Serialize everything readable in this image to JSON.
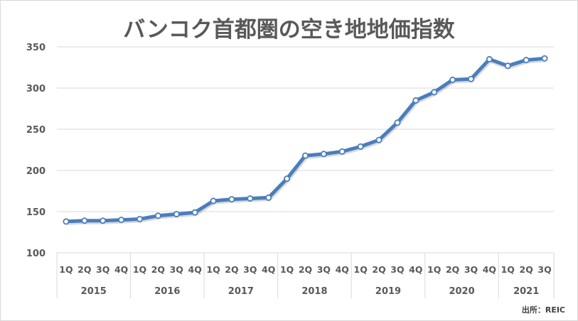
{
  "chart_data": {
    "type": "line",
    "title": "バンコク首都圏の空き地地価指数",
    "xlabel": "",
    "ylabel": "",
    "ylim": [
      100,
      350
    ],
    "yticks": [
      100,
      150,
      200,
      250,
      300,
      350
    ],
    "grid": true,
    "legend": null,
    "x": [
      "2015 1Q",
      "2015 2Q",
      "2015 3Q",
      "2015 4Q",
      "2016 1Q",
      "2016 2Q",
      "2016 3Q",
      "2016 4Q",
      "2017 1Q",
      "2017 2Q",
      "2017 3Q",
      "2017 4Q",
      "2018 1Q",
      "2018 2Q",
      "2018 3Q",
      "2018 4Q",
      "2019 1Q",
      "2019 2Q",
      "2019 3Q",
      "2019 4Q",
      "2020 1Q",
      "2020 2Q",
      "2020 3Q",
      "2020 4Q",
      "2021 1Q",
      "2021 2Q",
      "2021 3Q"
    ],
    "quarter_labels": [
      "1Q",
      "2Q",
      "3Q",
      "4Q",
      "1Q",
      "2Q",
      "3Q",
      "4Q",
      "1Q",
      "2Q",
      "3Q",
      "4Q",
      "1Q",
      "2Q",
      "3Q",
      "4Q",
      "1Q",
      "2Q",
      "3Q",
      "4Q",
      "1Q",
      "2Q",
      "3Q",
      "4Q",
      "1Q",
      "2Q",
      "3Q"
    ],
    "years": [
      {
        "label": "2015",
        "quarters": 4
      },
      {
        "label": "2016",
        "quarters": 4
      },
      {
        "label": "2017",
        "quarters": 4
      },
      {
        "label": "2018",
        "quarters": 4
      },
      {
        "label": "2019",
        "quarters": 4
      },
      {
        "label": "2020",
        "quarters": 4
      },
      {
        "label": "2021",
        "quarters": 3
      }
    ],
    "series": [
      {
        "name": "空き地地価指数",
        "color": "#4a7ebb",
        "values": [
          138,
          139,
          139,
          140,
          141,
          145,
          147,
          149,
          163,
          165,
          166,
          167,
          190,
          218,
          220,
          223,
          229,
          237,
          258,
          285,
          295,
          310,
          311,
          335,
          327,
          334,
          336
        ]
      }
    ],
    "source": "出所：REIC"
  },
  "colors": {
    "line": "#4a7ebb",
    "grid": "#d9d9d9",
    "text": "#595959"
  }
}
